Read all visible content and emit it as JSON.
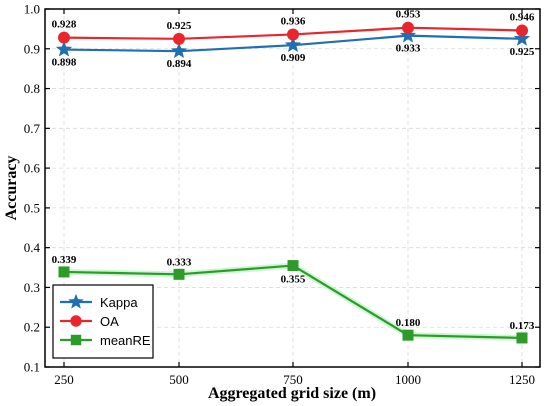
{
  "chart_data": {
    "type": "line",
    "xlabel": "Aggregated grid size (m)",
    "ylabel": "Accuracy",
    "x": [
      250,
      500,
      750,
      1000,
      1250
    ],
    "ylim": [
      0.1,
      1.0
    ],
    "yticks": [
      "0.1",
      "0.2",
      "0.3",
      "0.4",
      "0.5",
      "0.6",
      "0.7",
      "0.8",
      "0.9",
      "1.0"
    ],
    "xticks": [
      "250",
      "500",
      "750",
      "1000",
      "1250"
    ],
    "grid": true,
    "legend_position": "bottom-left",
    "series": [
      {
        "name": "Kappa",
        "values": [
          0.898,
          0.894,
          0.909,
          0.933,
          0.925
        ],
        "labels": [
          "0.898",
          "0.894",
          "0.909",
          "0.933",
          "0.925"
        ],
        "color": "#1f6fb2",
        "marker": "star",
        "label_position": "below"
      },
      {
        "name": "OA",
        "values": [
          0.928,
          0.925,
          0.936,
          0.953,
          0.946
        ],
        "labels": [
          "0.928",
          "0.925",
          "0.936",
          "0.953",
          "0.946"
        ],
        "color": "#e8262c",
        "marker": "circle",
        "label_position": "above"
      },
      {
        "name": "meanRE",
        "values": [
          0.339,
          0.333,
          0.355,
          0.18,
          0.173
        ],
        "labels": [
          "0.339",
          "0.333",
          "0.355",
          "0.180",
          "0.173"
        ],
        "color": "#2e9a2a",
        "marker": "square",
        "label_position": "mixed"
      }
    ]
  }
}
